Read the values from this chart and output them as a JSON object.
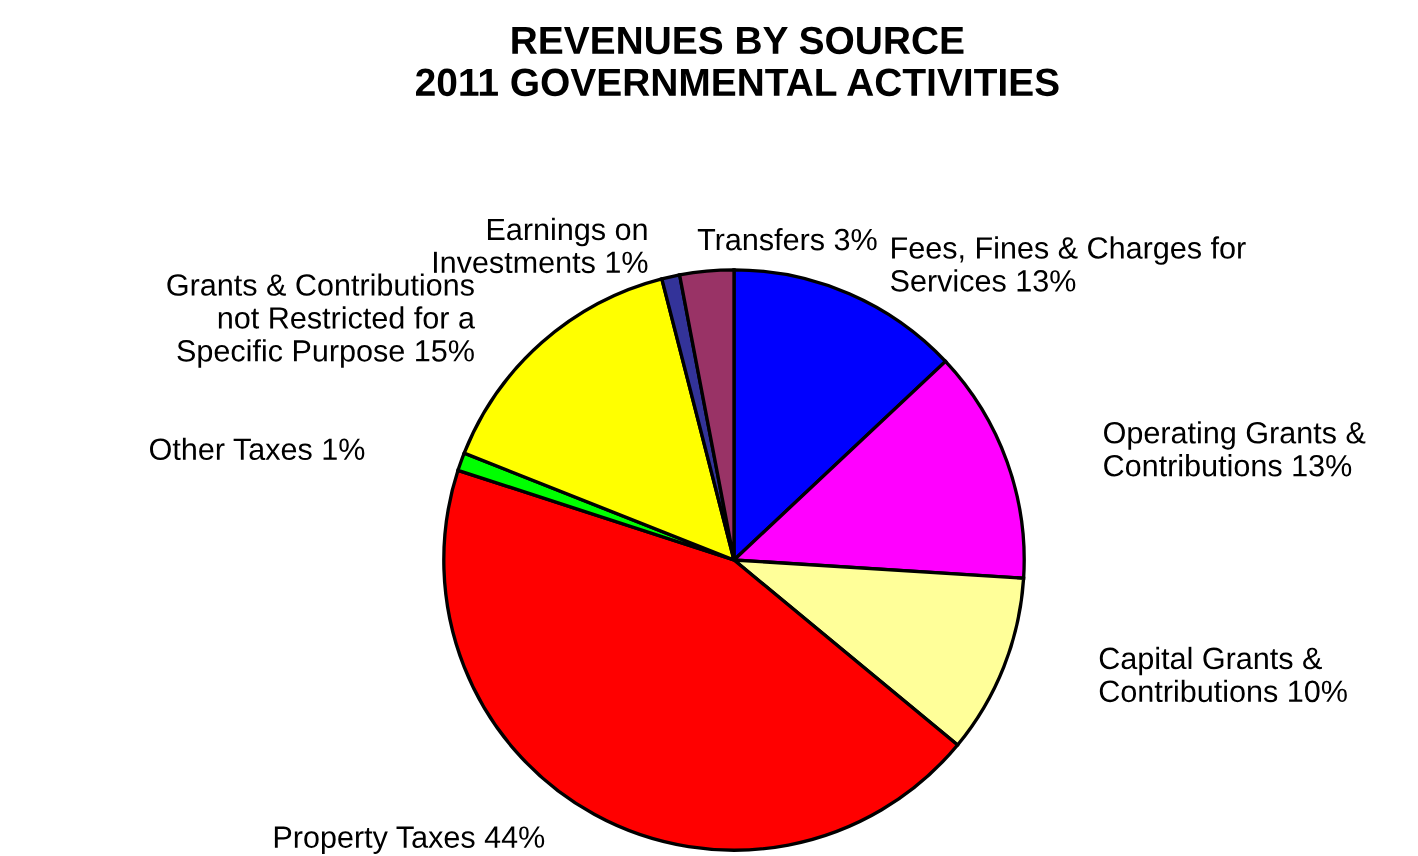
{
  "chart_data": {
    "type": "pie",
    "title": "REVENUES BY SOURCE\n2011 GOVERNMENTAL ACTIVITIES",
    "categories": [
      "Fees, Fines & Charges for\nServices",
      "Operating Grants &\nContributions",
      "Capital Grants &\nContributions",
      "Property Taxes",
      "Other Taxes",
      "Grants & Contributions\nnot Restricted for a\nSpecific Purpose",
      "Earnings on\nInvestments",
      "Transfers"
    ],
    "values": [
      13,
      13,
      10,
      44,
      1,
      15,
      1,
      3
    ],
    "value_labels": [
      "13%",
      "13%",
      "10%",
      "44%",
      "1%",
      "15%",
      "1%",
      "3%"
    ],
    "colors": [
      "#0000ff",
      "#ff00ff",
      "#ffff99",
      "#ff0000",
      "#00ff00",
      "#ffff00",
      "#333399",
      "#993366"
    ]
  }
}
